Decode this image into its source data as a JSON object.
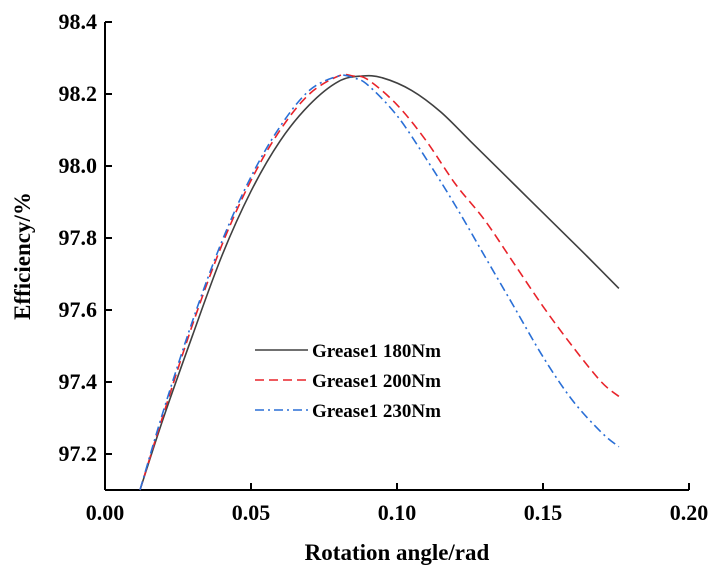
{
  "chart_data": {
    "type": "line",
    "title": "",
    "xlabel": "Rotation angle/rad",
    "ylabel": "Efficiency/%",
    "xlim": [
      0.0,
      0.2
    ],
    "ylim": [
      97.1,
      98.4
    ],
    "grid": false,
    "legend_position": "center",
    "x_ticks": [
      "0.00",
      "0.05",
      "0.10",
      "0.15",
      "0.20"
    ],
    "y_ticks": [
      "97.2",
      "97.4",
      "97.6",
      "97.8",
      "98.0",
      "98.2",
      "98.4"
    ],
    "series": [
      {
        "name": "Grease1 180Nm",
        "color": "#404040",
        "dash": "solid",
        "x": [
          0.012,
          0.02,
          0.03,
          0.04,
          0.05,
          0.06,
          0.07,
          0.08,
          0.088,
          0.095,
          0.105,
          0.115,
          0.125,
          0.135,
          0.145,
          0.155,
          0.165,
          0.176
        ],
        "y": [
          97.1,
          97.3,
          97.53,
          97.75,
          97.93,
          98.07,
          98.17,
          98.235,
          98.25,
          98.245,
          98.21,
          98.15,
          98.07,
          97.99,
          97.91,
          97.83,
          97.75,
          97.66
        ]
      },
      {
        "name": "Grease1 200Nm",
        "color": "#e8232a",
        "dash": "dashed",
        "x": [
          0.012,
          0.02,
          0.03,
          0.04,
          0.05,
          0.06,
          0.07,
          0.08,
          0.085,
          0.09,
          0.1,
          0.11,
          0.12,
          0.13,
          0.14,
          0.15,
          0.16,
          0.17,
          0.176
        ],
        "y": [
          97.1,
          97.31,
          97.56,
          97.78,
          97.96,
          98.1,
          98.2,
          98.25,
          98.25,
          98.24,
          98.17,
          98.07,
          97.95,
          97.85,
          97.73,
          97.61,
          97.5,
          97.4,
          97.36
        ]
      },
      {
        "name": "Grease1 230Nm",
        "color": "#2a6fd6",
        "dash": "dashdot",
        "x": [
          0.012,
          0.02,
          0.03,
          0.04,
          0.05,
          0.06,
          0.07,
          0.08,
          0.085,
          0.09,
          0.1,
          0.11,
          0.12,
          0.13,
          0.14,
          0.15,
          0.16,
          0.17,
          0.176
        ],
        "y": [
          97.1,
          97.32,
          97.57,
          97.79,
          97.97,
          98.11,
          98.21,
          98.25,
          98.245,
          98.225,
          98.14,
          98.02,
          97.89,
          97.75,
          97.61,
          97.47,
          97.35,
          97.26,
          97.22
        ]
      }
    ]
  }
}
